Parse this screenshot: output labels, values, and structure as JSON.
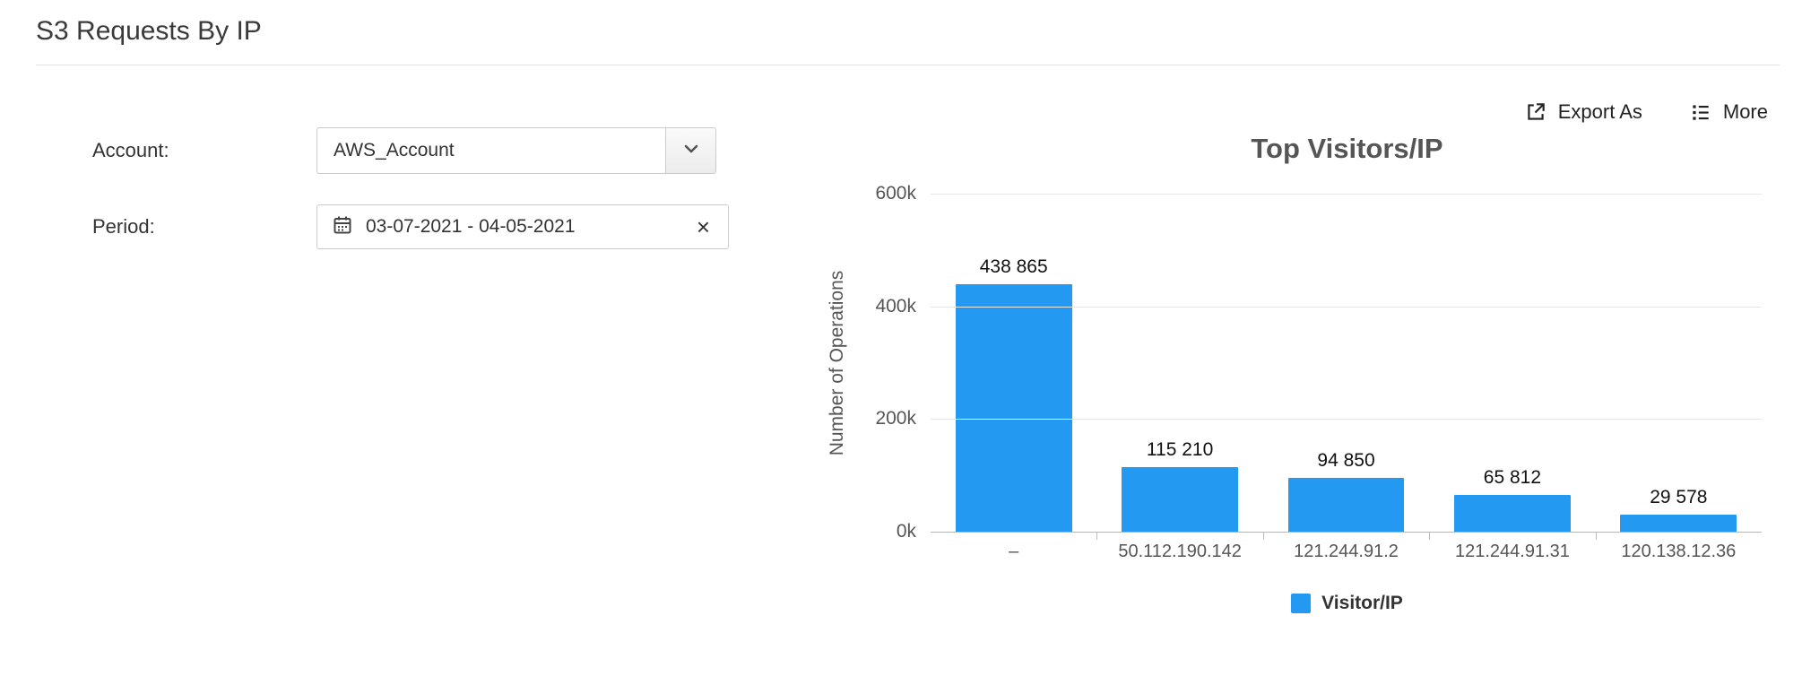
{
  "page": {
    "title": "S3 Requests By IP"
  },
  "toolbar": {
    "export_label": "Export As",
    "more_label": "More"
  },
  "form": {
    "account_label": "Account:",
    "account_value": "AWS_Account",
    "period_label": "Period:",
    "period_value": "03-07-2021 - 04-05-2021",
    "period_clear": "×"
  },
  "chart_data": {
    "type": "bar",
    "title": "Top Visitors/IP",
    "categories": [
      "–",
      "50.112.190.142",
      "121.244.91.2",
      "121.244.91.31",
      "120.138.12.36"
    ],
    "values": [
      438865,
      115210,
      94850,
      65812,
      29578
    ],
    "value_labels": [
      "438 865",
      "115 210",
      "94 850",
      "65 812",
      "29 578"
    ],
    "xlabel": "",
    "ylabel": "Number of Operations",
    "ylim": [
      0,
      600000
    ],
    "yticks": [
      "0k",
      "200k",
      "400k",
      "600k"
    ],
    "ytick_values": [
      0,
      200000,
      400000,
      600000
    ],
    "grid": true,
    "bar_color": "#2499f2",
    "legend_position": "bottom",
    "legend": [
      {
        "label": "Visitor/IP",
        "color": "#2499f2"
      }
    ]
  }
}
